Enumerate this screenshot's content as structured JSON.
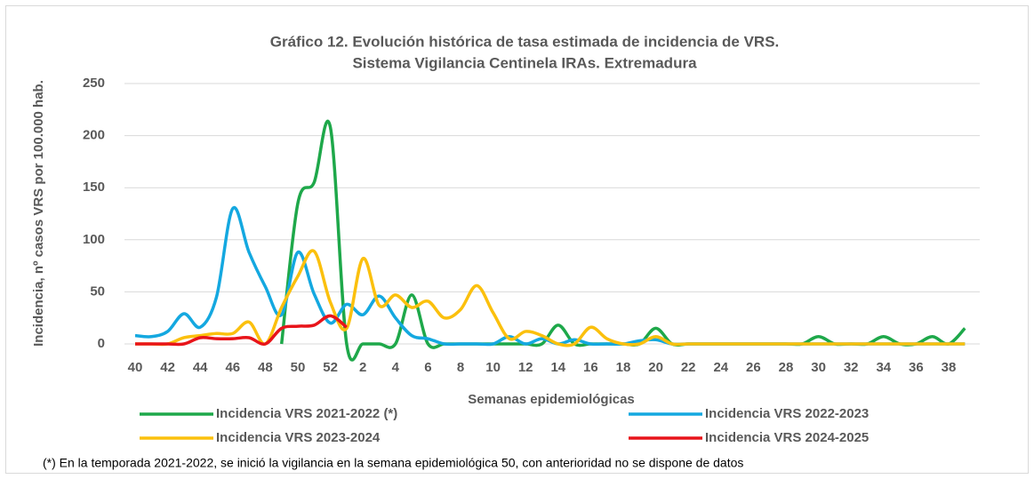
{
  "chart_data": {
    "type": "line",
    "title": "Gráfico 12. Evolución histórica de tasa estimada de  incidencia de VRS.",
    "subtitle": "Sistema Vigilancia Centinela IRAs. Extremadura",
    "y_label": "Incidencia, nº casos VRS  por 100.000 hab.",
    "x_label": "Semanas epidemiológicas",
    "categories": [
      40,
      null,
      42,
      null,
      44,
      null,
      46,
      null,
      48,
      null,
      50,
      null,
      52,
      null,
      2,
      null,
      4,
      null,
      6,
      null,
      8,
      null,
      10,
      null,
      12,
      null,
      14,
      null,
      16,
      null,
      18,
      null,
      20,
      null,
      22,
      null,
      24,
      null,
      26,
      null,
      28,
      null,
      30,
      null,
      32,
      null,
      34,
      null,
      36,
      null,
      38,
      null
    ],
    "series": [
      {
        "name": "Incidencia VRS 2021-2022 (*)",
        "color": "#1ea84a",
        "values": [
          null,
          null,
          null,
          null,
          null,
          null,
          null,
          null,
          null,
          0,
          135,
          155,
          208,
          0,
          0,
          0,
          0,
          47,
          0,
          0,
          0,
          0,
          0,
          0,
          0,
          0,
          18,
          0,
          0,
          0,
          0,
          0,
          15,
          0,
          0,
          0,
          0,
          0,
          0,
          0,
          0,
          0,
          7,
          0,
          0,
          0,
          7,
          0,
          0,
          7,
          0,
          15
        ]
      },
      {
        "name": "Incidencia VRS 2022-2023",
        "color": "#14a8e0",
        "values": [
          8,
          7,
          12,
          29,
          16,
          45,
          130,
          88,
          55,
          28,
          88,
          48,
          20,
          38,
          28,
          46,
          25,
          8,
          5,
          0,
          0,
          0,
          0,
          7,
          0,
          5,
          0,
          4,
          0,
          0,
          0,
          3,
          4,
          0,
          0,
          0,
          0,
          0,
          0,
          0,
          0,
          0,
          0,
          0,
          0,
          0,
          0,
          0,
          0,
          0,
          0,
          0
        ]
      },
      {
        "name": "Incidencia VRS 2023-2024",
        "color": "#fbc00d",
        "values": [
          0,
          0,
          0,
          6,
          8,
          10,
          10,
          21,
          0,
          35,
          65,
          89,
          40,
          15,
          82,
          37,
          47,
          35,
          41,
          25,
          33,
          56,
          30,
          5,
          12,
          8,
          0,
          0,
          16,
          5,
          0,
          0,
          7,
          0,
          0,
          0,
          0,
          0,
          0,
          0,
          0,
          0,
          0,
          0,
          0,
          0,
          0,
          0,
          0,
          0,
          0,
          0
        ]
      },
      {
        "name": "Incidencia VRS 2024-2025",
        "color": "#e8141a",
        "values": [
          0,
          0,
          0,
          0,
          6,
          5,
          5,
          6,
          0,
          15,
          17,
          18,
          27,
          16,
          null,
          null,
          null,
          null,
          null,
          null,
          null,
          null,
          null,
          null,
          null,
          null,
          null,
          null,
          null,
          null,
          null,
          null,
          null,
          null,
          null,
          null,
          null,
          null,
          null,
          null,
          null,
          null,
          null,
          null,
          null,
          null,
          null,
          null,
          null,
          null,
          null,
          null
        ]
      }
    ],
    "ylim": [
      0,
      250
    ],
    "yticks": [
      0,
      50,
      100,
      150,
      200,
      250
    ],
    "grid": true,
    "legend": "bottom"
  },
  "footnote": "(*) En la temporada 2021-2022, se inició la vigilancia en la semana epidemiológica 50, con anterioridad no se dispone de datos"
}
